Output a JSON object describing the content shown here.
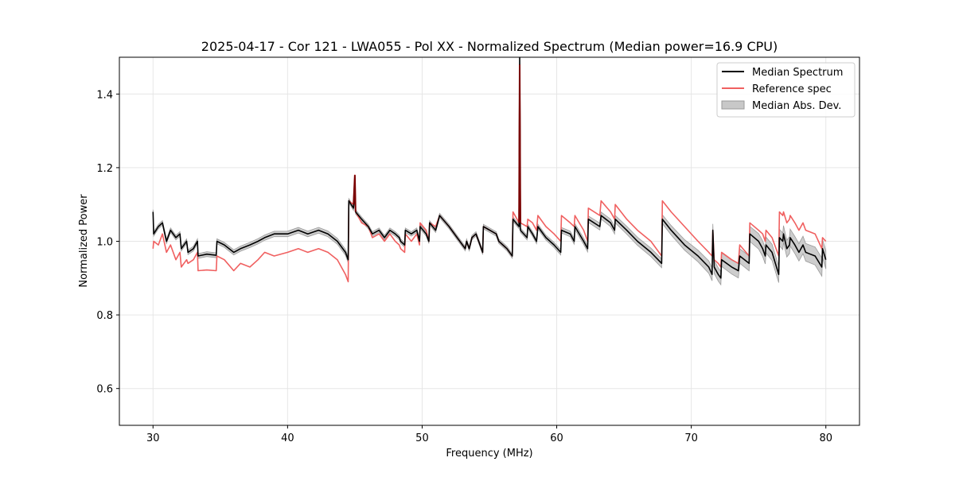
{
  "chart_data": {
    "type": "line",
    "title": "2025-04-17 - Cor 121 - LWA055 - Pol XX - Normalized Spectrum (Median power=16.9 CPU)",
    "xlabel": "Frequency (MHz)",
    "ylabel": "Normalized Power",
    "xlim": [
      27.5,
      82.5
    ],
    "ylim": [
      0.5,
      1.5
    ],
    "xticks": [
      30,
      40,
      50,
      60,
      70,
      80
    ],
    "yticks": [
      0.6,
      0.8,
      1.0,
      1.2,
      1.4
    ],
    "grid": true,
    "legend_position": "top-right",
    "legend": [
      "Median Spectrum",
      "Reference spec",
      "Median Abs. Dev."
    ],
    "colors": {
      "median": "#000000",
      "reference": "#f06060",
      "mad_fill": "#c8c8c8",
      "mad_edge": "#9a9a9a",
      "overlap": "#7a0000"
    },
    "series": [
      {
        "name": "Median Spectrum",
        "points": [
          [
            30.0,
            1.08
          ],
          [
            30.05,
            1.02
          ],
          [
            30.4,
            1.04
          ],
          [
            30.7,
            1.05
          ],
          [
            31.0,
            1.0
          ],
          [
            31.3,
            1.03
          ],
          [
            31.7,
            1.01
          ],
          [
            32.0,
            1.02
          ],
          [
            32.1,
            0.98
          ],
          [
            32.5,
            1.0
          ],
          [
            32.6,
            0.97
          ],
          [
            33.0,
            0.98
          ],
          [
            33.3,
            1.0
          ],
          [
            33.35,
            0.96
          ],
          [
            34.0,
            0.965
          ],
          [
            34.7,
            0.962
          ],
          [
            34.75,
            1.0
          ],
          [
            35.3,
            0.99
          ],
          [
            36.0,
            0.97
          ],
          [
            36.5,
            0.98
          ],
          [
            37.2,
            0.99
          ],
          [
            37.8,
            1.0
          ],
          [
            38.3,
            1.01
          ],
          [
            39.0,
            1.02
          ],
          [
            40.0,
            1.02
          ],
          [
            40.8,
            1.03
          ],
          [
            41.5,
            1.02
          ],
          [
            42.3,
            1.03
          ],
          [
            43.0,
            1.02
          ],
          [
            43.7,
            1.0
          ],
          [
            44.3,
            0.97
          ],
          [
            44.5,
            0.95
          ],
          [
            44.55,
            1.11
          ],
          [
            44.9,
            1.09
          ],
          [
            45.0,
            1.14
          ],
          [
            45.05,
            1.08
          ],
          [
            45.5,
            1.06
          ],
          [
            46.0,
            1.04
          ],
          [
            46.3,
            1.02
          ],
          [
            46.8,
            1.03
          ],
          [
            47.2,
            1.01
          ],
          [
            47.6,
            1.03
          ],
          [
            48.0,
            1.02
          ],
          [
            48.3,
            1.01
          ],
          [
            48.4,
            1.0
          ],
          [
            48.7,
            0.99
          ],
          [
            48.75,
            1.03
          ],
          [
            49.2,
            1.02
          ],
          [
            49.6,
            1.03
          ],
          [
            49.8,
            1.0
          ],
          [
            49.85,
            1.04
          ],
          [
            50.3,
            1.02
          ],
          [
            50.5,
            1.0
          ],
          [
            50.55,
            1.05
          ],
          [
            51.0,
            1.03
          ],
          [
            51.3,
            1.07
          ],
          [
            52.0,
            1.04
          ],
          [
            52.6,
            1.01
          ],
          [
            53.2,
            0.98
          ],
          [
            53.3,
            1.0
          ],
          [
            53.5,
            0.98
          ],
          [
            53.7,
            1.01
          ],
          [
            54.0,
            1.02
          ],
          [
            54.3,
            0.99
          ],
          [
            54.5,
            0.97
          ],
          [
            54.55,
            1.04
          ],
          [
            55.5,
            1.02
          ],
          [
            55.7,
            1.0
          ],
          [
            56.3,
            0.98
          ],
          [
            56.7,
            0.96
          ],
          [
            56.75,
            1.06
          ],
          [
            57.2,
            1.04
          ],
          [
            57.25,
            1.5
          ],
          [
            57.3,
            1.03
          ],
          [
            57.8,
            1.01
          ],
          [
            57.85,
            1.04
          ],
          [
            58.2,
            1.02
          ],
          [
            58.5,
            1.0
          ],
          [
            58.6,
            1.04
          ],
          [
            59.2,
            1.01
          ],
          [
            59.8,
            0.99
          ],
          [
            60.3,
            0.97
          ],
          [
            60.35,
            1.03
          ],
          [
            61.0,
            1.02
          ],
          [
            61.3,
            1.0
          ],
          [
            61.35,
            1.04
          ],
          [
            62.0,
            1.0
          ],
          [
            62.3,
            0.98
          ],
          [
            62.35,
            1.06
          ],
          [
            63.2,
            1.04
          ],
          [
            63.3,
            1.07
          ],
          [
            64.0,
            1.05
          ],
          [
            64.3,
            1.03
          ],
          [
            64.35,
            1.06
          ],
          [
            65.2,
            1.03
          ],
          [
            66.0,
            1.0
          ],
          [
            67.0,
            0.97
          ],
          [
            67.8,
            0.94
          ],
          [
            67.85,
            1.06
          ],
          [
            68.5,
            1.03
          ],
          [
            69.5,
            0.99
          ],
          [
            70.5,
            0.96
          ],
          [
            71.3,
            0.93
          ],
          [
            71.55,
            0.91
          ],
          [
            71.6,
            1.03
          ],
          [
            71.7,
            0.93
          ],
          [
            72.0,
            0.91
          ],
          [
            72.2,
            0.9
          ],
          [
            72.25,
            0.95
          ],
          [
            73.0,
            0.93
          ],
          [
            73.5,
            0.92
          ],
          [
            73.6,
            0.96
          ],
          [
            74.3,
            0.94
          ],
          [
            74.35,
            1.02
          ],
          [
            75.0,
            1.0
          ],
          [
            75.3,
            0.98
          ],
          [
            75.5,
            0.96
          ],
          [
            75.55,
            0.99
          ],
          [
            76.0,
            0.97
          ],
          [
            76.5,
            0.91
          ],
          [
            76.55,
            1.01
          ],
          [
            76.8,
            1.0
          ],
          [
            76.85,
            1.02
          ],
          [
            77.1,
            0.98
          ],
          [
            77.3,
            0.99
          ],
          [
            77.35,
            1.01
          ],
          [
            77.7,
            0.99
          ],
          [
            78.0,
            0.97
          ],
          [
            78.3,
            0.99
          ],
          [
            78.5,
            0.97
          ],
          [
            79.2,
            0.96
          ],
          [
            79.7,
            0.93
          ],
          [
            79.75,
            0.98
          ],
          [
            80.0,
            0.95
          ]
        ]
      },
      {
        "name": "Reference spec",
        "points": [
          [
            30.0,
            0.98
          ],
          [
            30.05,
            1.0
          ],
          [
            30.4,
            0.99
          ],
          [
            30.7,
            1.02
          ],
          [
            31.0,
            0.97
          ],
          [
            31.3,
            0.99
          ],
          [
            31.7,
            0.95
          ],
          [
            32.0,
            0.97
          ],
          [
            32.1,
            0.93
          ],
          [
            32.5,
            0.95
          ],
          [
            32.6,
            0.94
          ],
          [
            33.0,
            0.95
          ],
          [
            33.3,
            0.97
          ],
          [
            33.35,
            0.92
          ],
          [
            34.0,
            0.922
          ],
          [
            34.7,
            0.92
          ],
          [
            34.75,
            0.96
          ],
          [
            35.3,
            0.95
          ],
          [
            36.0,
            0.92
          ],
          [
            36.5,
            0.94
          ],
          [
            37.2,
            0.93
          ],
          [
            37.8,
            0.95
          ],
          [
            38.3,
            0.97
          ],
          [
            39.0,
            0.96
          ],
          [
            40.0,
            0.97
          ],
          [
            40.8,
            0.98
          ],
          [
            41.5,
            0.97
          ],
          [
            42.3,
            0.98
          ],
          [
            43.0,
            0.97
          ],
          [
            43.7,
            0.95
          ],
          [
            44.3,
            0.91
          ],
          [
            44.5,
            0.89
          ],
          [
            44.55,
            1.11
          ],
          [
            44.9,
            1.1
          ],
          [
            45.0,
            1.18
          ],
          [
            45.05,
            1.08
          ],
          [
            45.5,
            1.05
          ],
          [
            46.0,
            1.04
          ],
          [
            46.3,
            1.01
          ],
          [
            46.8,
            1.02
          ],
          [
            47.2,
            1.0
          ],
          [
            47.6,
            1.02
          ],
          [
            48.0,
            1.0
          ],
          [
            48.3,
            0.99
          ],
          [
            48.4,
            0.98
          ],
          [
            48.7,
            0.97
          ],
          [
            48.75,
            1.02
          ],
          [
            49.2,
            1.0
          ],
          [
            49.6,
            1.02
          ],
          [
            49.8,
            0.99
          ],
          [
            49.85,
            1.05
          ],
          [
            50.3,
            1.03
          ],
          [
            50.5,
            1.0
          ],
          [
            50.55,
            1.05
          ],
          [
            51.0,
            1.04
          ],
          [
            51.3,
            1.07
          ],
          [
            52.0,
            1.04
          ],
          [
            52.6,
            1.01
          ],
          [
            53.2,
            0.98
          ],
          [
            53.3,
            1.0
          ],
          [
            53.5,
            0.98
          ],
          [
            53.7,
            1.01
          ],
          [
            54.0,
            1.02
          ],
          [
            54.3,
            0.99
          ],
          [
            54.5,
            0.97
          ],
          [
            54.55,
            1.04
          ],
          [
            55.5,
            1.02
          ],
          [
            55.7,
            1.0
          ],
          [
            56.3,
            0.98
          ],
          [
            56.7,
            0.96
          ],
          [
            56.75,
            1.08
          ],
          [
            57.2,
            1.05
          ],
          [
            57.25,
            1.48
          ],
          [
            57.3,
            1.05
          ],
          [
            57.8,
            1.04
          ],
          [
            57.85,
            1.06
          ],
          [
            58.2,
            1.05
          ],
          [
            58.5,
            1.03
          ],
          [
            58.6,
            1.07
          ],
          [
            59.2,
            1.04
          ],
          [
            59.8,
            1.02
          ],
          [
            60.3,
            1.0
          ],
          [
            60.35,
            1.07
          ],
          [
            61.0,
            1.05
          ],
          [
            61.3,
            1.04
          ],
          [
            61.35,
            1.07
          ],
          [
            62.0,
            1.03
          ],
          [
            62.3,
            1.0
          ],
          [
            62.35,
            1.09
          ],
          [
            63.2,
            1.07
          ],
          [
            63.3,
            1.11
          ],
          [
            64.0,
            1.08
          ],
          [
            64.3,
            1.06
          ],
          [
            64.35,
            1.1
          ],
          [
            65.2,
            1.06
          ],
          [
            66.0,
            1.03
          ],
          [
            67.0,
            1.0
          ],
          [
            67.8,
            0.96
          ],
          [
            67.85,
            1.11
          ],
          [
            68.5,
            1.08
          ],
          [
            69.5,
            1.04
          ],
          [
            70.5,
            1.0
          ],
          [
            71.3,
            0.97
          ],
          [
            71.55,
            0.96
          ],
          [
            71.6,
            1.03
          ],
          [
            71.7,
            0.95
          ],
          [
            72.0,
            0.94
          ],
          [
            72.2,
            0.93
          ],
          [
            72.25,
            0.97
          ],
          [
            73.0,
            0.95
          ],
          [
            73.5,
            0.94
          ],
          [
            73.6,
            0.99
          ],
          [
            74.3,
            0.96
          ],
          [
            74.35,
            1.05
          ],
          [
            75.0,
            1.03
          ],
          [
            75.3,
            1.02
          ],
          [
            75.5,
            1.0
          ],
          [
            75.55,
            1.03
          ],
          [
            76.0,
            1.01
          ],
          [
            76.5,
            0.96
          ],
          [
            76.55,
            1.08
          ],
          [
            76.8,
            1.07
          ],
          [
            76.85,
            1.08
          ],
          [
            77.1,
            1.05
          ],
          [
            77.3,
            1.06
          ],
          [
            77.35,
            1.07
          ],
          [
            77.7,
            1.05
          ],
          [
            78.0,
            1.03
          ],
          [
            78.3,
            1.05
          ],
          [
            78.5,
            1.03
          ],
          [
            79.2,
            1.02
          ],
          [
            79.7,
            0.98
          ],
          [
            79.75,
            1.01
          ],
          [
            80.0,
            1.0
          ]
        ]
      },
      {
        "name": "Median Abs. Dev.",
        "halfwidth": [
          [
            30.0,
            0.006
          ],
          [
            44.5,
            0.008
          ],
          [
            44.55,
            0.006
          ],
          [
            57.0,
            0.006
          ],
          [
            60.0,
            0.007
          ],
          [
            64.0,
            0.01
          ],
          [
            68.0,
            0.012
          ],
          [
            72.0,
            0.018
          ],
          [
            76.0,
            0.022
          ],
          [
            80.0,
            0.025
          ]
        ]
      }
    ]
  }
}
